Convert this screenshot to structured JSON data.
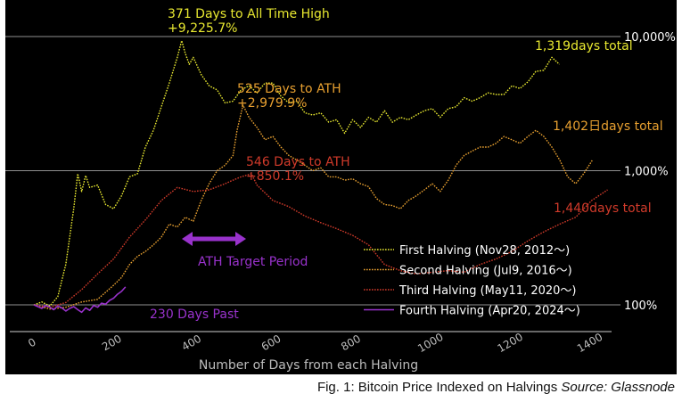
{
  "chart_data": {
    "type": "line",
    "xlabel": "Number of Days from each Halving",
    "ylabel": "",
    "y_scale": "log",
    "xlim": [
      0,
      1450
    ],
    "ylim": [
      70,
      13000
    ],
    "xticks": [
      "0",
      "200",
      "400",
      "600",
      "800",
      "1000",
      "1200",
      "1400"
    ],
    "yticks": [
      {
        "value": 100,
        "label": "100%"
      },
      {
        "value": 1000,
        "label": "1,000%"
      },
      {
        "value": 10000,
        "label": "10,000%"
      }
    ],
    "series": [
      {
        "name": "First Halving (Nov28, 2012～)",
        "color": "#e8e830",
        "x": [
          0,
          20,
          40,
          60,
          80,
          100,
          110,
          120,
          130,
          140,
          160,
          180,
          200,
          220,
          240,
          260,
          280,
          300,
          320,
          340,
          360,
          371,
          380,
          390,
          400,
          420,
          440,
          460,
          480,
          500,
          520,
          540,
          560,
          580,
          600,
          620,
          640,
          660,
          680,
          700,
          720,
          740,
          760,
          780,
          800,
          820,
          840,
          860,
          880,
          900,
          920,
          940,
          960,
          980,
          1000,
          1020,
          1040,
          1060,
          1080,
          1100,
          1120,
          1140,
          1160,
          1180,
          1200,
          1220,
          1240,
          1260,
          1280,
          1300,
          1319
        ],
        "y": [
          100,
          105,
          98,
          115,
          200,
          520,
          950,
          700,
          920,
          750,
          780,
          560,
          520,
          650,
          900,
          950,
          1500,
          2000,
          3000,
          4500,
          7000,
          9325,
          7500,
          6200,
          7000,
          5200,
          4300,
          4000,
          3200,
          3300,
          4000,
          4300,
          3800,
          4500,
          4500,
          3600,
          3200,
          3300,
          2700,
          2600,
          2700,
          2300,
          2400,
          1900,
          2400,
          2100,
          2500,
          2300,
          2800,
          2300,
          2500,
          2400,
          2600,
          2800,
          2900,
          2500,
          2900,
          3000,
          3500,
          3300,
          3500,
          3800,
          3700,
          3700,
          4300,
          4100,
          4600,
          5500,
          5600,
          7000,
          6200
        ]
      },
      {
        "name": "Second Halving (Jul9, 2016～)",
        "color": "#e8a030",
        "x": [
          0,
          40,
          80,
          120,
          160,
          200,
          220,
          240,
          260,
          280,
          300,
          320,
          340,
          360,
          380,
          400,
          420,
          440,
          460,
          480,
          500,
          510,
          525,
          540,
          560,
          580,
          600,
          620,
          640,
          660,
          680,
          700,
          720,
          740,
          760,
          780,
          800,
          820,
          840,
          860,
          880,
          900,
          920,
          940,
          960,
          980,
          1000,
          1020,
          1040,
          1060,
          1080,
          1100,
          1120,
          1140,
          1160,
          1180,
          1200,
          1220,
          1240,
          1260,
          1280,
          1300,
          1320,
          1340,
          1360,
          1380,
          1402
        ],
        "y": [
          100,
          93,
          96,
          105,
          110,
          140,
          160,
          200,
          230,
          250,
          280,
          320,
          400,
          380,
          450,
          420,
          600,
          800,
          1000,
          1100,
          1300,
          2000,
          3080,
          2500,
          2100,
          1700,
          1800,
          1500,
          1300,
          1200,
          1100,
          1000,
          1050,
          900,
          900,
          850,
          870,
          800,
          760,
          620,
          560,
          550,
          520,
          600,
          650,
          720,
          800,
          700,
          850,
          1100,
          1300,
          1400,
          1500,
          1500,
          1600,
          1800,
          1700,
          1600,
          1800,
          2000,
          1800,
          1500,
          1200,
          900,
          800,
          950,
          1200
        ]
      },
      {
        "name": "Third Halving (May11, 2020～)",
        "color": "#d03a2a",
        "x": [
          0,
          40,
          80,
          120,
          160,
          200,
          240,
          280,
          320,
          360,
          400,
          440,
          480,
          500,
          520,
          546,
          560,
          600,
          640,
          680,
          720,
          760,
          800,
          840,
          880,
          920,
          960,
          1000,
          1040,
          1080,
          1120,
          1160,
          1200,
          1240,
          1280,
          1320,
          1360,
          1400,
          1440
        ],
        "y": [
          100,
          96,
          104,
          130,
          170,
          220,
          320,
          430,
          600,
          750,
          700,
          720,
          800,
          850,
          900,
          950,
          780,
          600,
          540,
          460,
          410,
          370,
          330,
          280,
          200,
          180,
          170,
          175,
          180,
          175,
          200,
          220,
          250,
          300,
          350,
          400,
          450,
          600,
          720
        ]
      },
      {
        "name": "Fourth Halving (Apr20, 2024～)",
        "color": "#9932cc",
        "x": [
          0,
          10,
          20,
          30,
          40,
          50,
          60,
          70,
          80,
          90,
          100,
          110,
          120,
          130,
          140,
          150,
          160,
          170,
          180,
          190,
          200,
          210,
          220,
          230
        ],
        "y": [
          100,
          97,
          94,
          99,
          96,
          92,
          98,
          95,
          90,
          94,
          97,
          92,
          88,
          95,
          91,
          99,
          96,
          103,
          101,
          108,
          112,
          120,
          126,
          136
        ]
      }
    ],
    "legend_placement": "bottom-right",
    "annotations": [
      {
        "lines": [
          "371 Days to All Time High",
          "+9,225.7%"
        ],
        "color": "#e8e830"
      },
      {
        "lines": [
          "525 Days to ATH",
          "+2,979.9%"
        ],
        "color": "#e8a030"
      },
      {
        "lines": [
          "546 Days to ATH",
          "+850.1%"
        ],
        "color": "#d03a2a"
      },
      {
        "lines": [
          "1,319days total"
        ],
        "color": "#e8e830"
      },
      {
        "lines": [
          "1,402日days total"
        ],
        "color": "#e8a030"
      },
      {
        "lines": [
          "1,440days total"
        ],
        "color": "#d03a2a"
      },
      {
        "lines": [
          "ATH Target Period"
        ],
        "color": "#9932cc"
      },
      {
        "lines": [
          "230 Days Past"
        ],
        "color": "#9932cc"
      }
    ],
    "grid": false
  },
  "caption": {
    "text": "Fig. 1: Bitcoin Price Indexed on Halvings ",
    "source": "Source: Glassnode"
  }
}
